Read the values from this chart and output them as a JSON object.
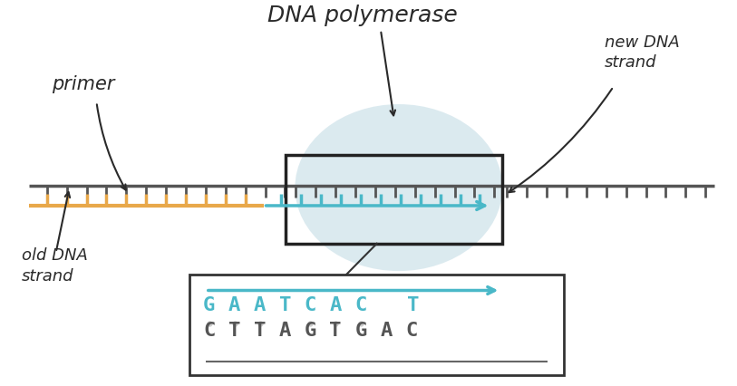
{
  "title": "DNA polymerase",
  "primer_label": "primer",
  "new_dna_label": "new DNA\nstrand",
  "old_dna_label": "old DNA\nstrand",
  "primer_color": "#e8a84a",
  "new_strand_color": "#4ab8c8",
  "template_color": "#555555",
  "enzyme_blob_color": "#d8e8ee",
  "box_color": "#222222",
  "seq_top": "GAATCAC",
  "seq_top_extra": "T",
  "seq_bottom": "CTTAGTGAC",
  "seq_color_top": "#4ab8c8",
  "seq_color_bottom": "#555555",
  "label_color": "#2a2a2a",
  "tick_color_orange": "#e8a84a",
  "tick_color_blue": "#4ab8c8",
  "tick_color_gray": "#555555",
  "dot_color": "#cccccc"
}
